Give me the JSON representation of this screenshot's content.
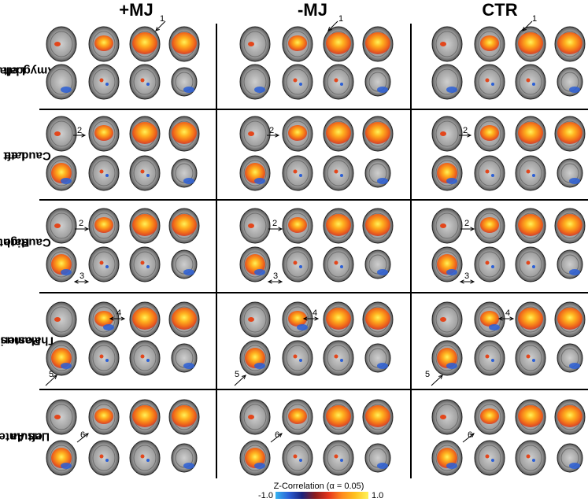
{
  "columns": [
    "+MJ",
    "-MJ",
    "CTR"
  ],
  "rows": [
    {
      "line1": "Left",
      "line2": "Amygdala"
    },
    {
      "line1": "Left",
      "line2": "Caudate"
    },
    {
      "line1": "Right",
      "line2": "Caudate"
    },
    {
      "line1": "Posterior",
      "line2": "Thalamus"
    },
    {
      "line1": "Left Anterior",
      "line2": "Insula"
    }
  ],
  "annotations": [
    "1",
    "2",
    "3",
    "4",
    "5",
    "6"
  ],
  "colorbar": {
    "title": "Z-Correlation (α = 0.05)",
    "min": "-1.0",
    "max": "1.0",
    "colors": [
      "#35b4f0",
      "#2b5fd6",
      "#1a237e",
      "#8c1c1c",
      "#e6351b",
      "#ff8a1f",
      "#ffc21f",
      "#fff25a"
    ]
  }
}
